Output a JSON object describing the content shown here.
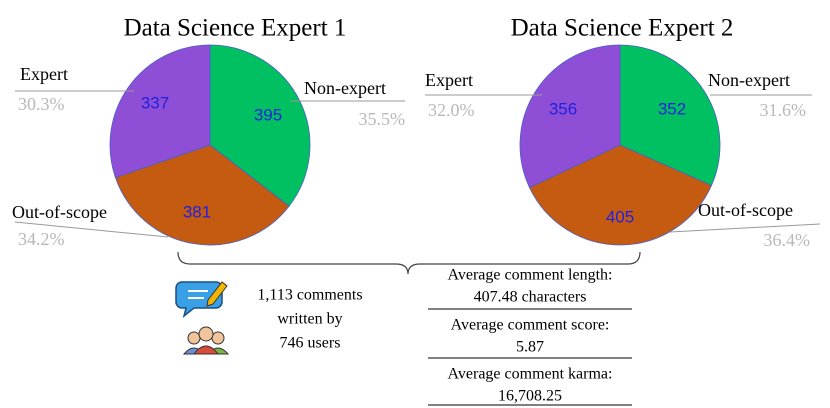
{
  "chart_data": [
    {
      "type": "pie",
      "title": "Data Science Expert 1",
      "categories": [
        "Non-expert",
        "Out-of-scope",
        "Expert"
      ],
      "values": [
        395,
        381,
        337
      ],
      "percentage_labels": [
        "35.5%",
        "34.2%",
        "30.3%"
      ],
      "colors": [
        "#00c062",
        "#c55a11",
        "#8e4fd6"
      ]
    },
    {
      "type": "pie",
      "title": "Data Science Expert 2",
      "categories": [
        "Non-expert",
        "Out-of-scope",
        "Expert"
      ],
      "values": [
        352,
        405,
        356
      ],
      "percentage_labels": [
        "31.6%",
        "36.4%",
        "32.0%"
      ],
      "colors": [
        "#00c062",
        "#c55a11",
        "#8e4fd6"
      ]
    }
  ],
  "summary": {
    "comments": "1,113 comments",
    "written_by": "written by",
    "users": "746 users"
  },
  "stats": [
    {
      "label": "Average comment length:",
      "value": "407.48 characters"
    },
    {
      "label": "Average comment score:",
      "value": "5.87"
    },
    {
      "label": "Average comment karma:",
      "value": "16,708.25"
    }
  ]
}
